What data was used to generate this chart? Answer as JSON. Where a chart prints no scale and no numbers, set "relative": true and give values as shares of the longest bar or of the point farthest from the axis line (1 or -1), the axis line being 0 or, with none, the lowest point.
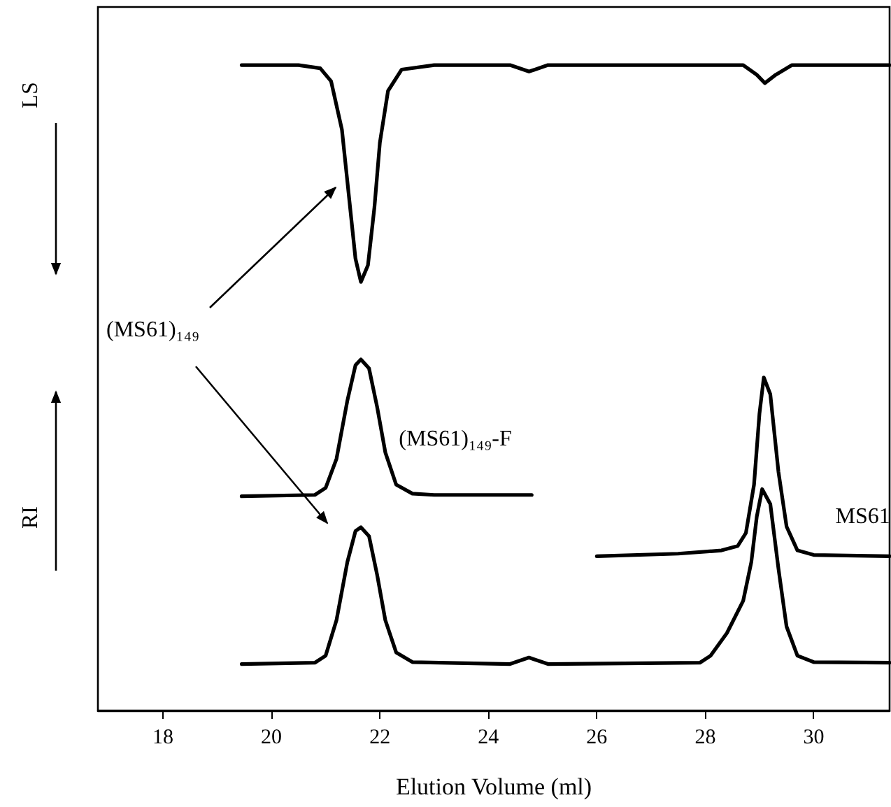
{
  "chart_data": {
    "type": "line",
    "xlabel": "Elution Volume (ml)",
    "relative": true,
    "xlim": [
      16.8,
      31.4
    ],
    "xticks": [
      18,
      20,
      22,
      24,
      26,
      28,
      30
    ],
    "tick_labels": "x",
    "grid": false,
    "marker": "none",
    "line_style": "solid",
    "annotations": [
      "LS",
      "RI",
      "(MS61)₁₄₉"
    ],
    "series": [
      {
        "color": "#000000",
        "x": [
          19.45,
          20.5,
          20.9,
          21.1,
          21.3,
          21.45,
          21.55,
          21.65,
          21.78,
          21.9,
          22.0,
          22.15,
          22.4,
          23,
          24.4,
          24.75,
          25.1,
          28.7,
          28.95,
          29.1,
          29.3,
          29.6,
          31.4
        ],
        "values": [
          1.0,
          1.0,
          0.995,
          0.975,
          0.9,
          0.78,
          0.7,
          0.664,
          0.69,
          0.78,
          0.88,
          0.96,
          0.993,
          1.0,
          1.0,
          0.99,
          1.0,
          1.0,
          0.985,
          0.972,
          0.985,
          1.0,
          1.0
        ]
      },
      {
        "name": "(MS61)₁₄₉-F",
        "color": "#000000",
        "x": [
          19.45,
          20.8,
          21.0,
          21.2,
          21.4,
          21.55,
          21.65,
          21.8,
          21.95,
          22.1,
          22.3,
          22.6,
          23,
          24.8
        ],
        "values": [
          0.332,
          0.334,
          0.345,
          0.39,
          0.48,
          0.535,
          0.544,
          0.53,
          0.47,
          0.4,
          0.35,
          0.336,
          0.334,
          0.334
        ]
      },
      {
        "name": "MS61",
        "color": "#000000",
        "x": [
          26.0,
          27.5,
          28.3,
          28.6,
          28.75,
          28.9,
          29.0,
          29.08,
          29.2,
          29.35,
          29.5,
          29.7,
          30.0,
          31.4
        ],
        "values": [
          0.239,
          0.243,
          0.248,
          0.255,
          0.275,
          0.35,
          0.46,
          0.516,
          0.49,
          0.37,
          0.285,
          0.248,
          0.241,
          0.239
        ]
      },
      {
        "color": "#000000",
        "x": [
          19.45,
          20.8,
          21.0,
          21.2,
          21.4,
          21.55,
          21.65,
          21.8,
          21.95,
          22.1,
          22.3,
          22.6,
          24.4,
          24.75,
          25.1,
          27.9,
          28.1,
          28.4,
          28.7,
          28.85,
          28.95,
          29.05,
          29.2,
          29.35,
          29.5,
          29.7,
          30.0,
          31.4
        ],
        "values": [
          0.072,
          0.074,
          0.085,
          0.14,
          0.23,
          0.278,
          0.284,
          0.27,
          0.21,
          0.14,
          0.09,
          0.075,
          0.072,
          0.082,
          0.072,
          0.074,
          0.085,
          0.12,
          0.17,
          0.23,
          0.3,
          0.343,
          0.32,
          0.22,
          0.13,
          0.085,
          0.075,
          0.074
        ]
      }
    ]
  }
}
